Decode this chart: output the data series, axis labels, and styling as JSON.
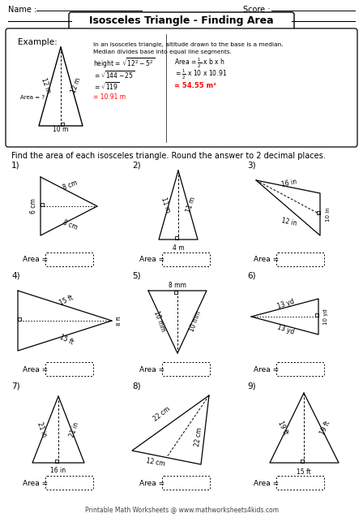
{
  "title": "Isosceles Triangle - Finding Area",
  "name_label": "Name :",
  "score_label": "Score :",
  "instruction": "Find the area of each isosceles triangle. Round the answer to 2 decimal places.",
  "example_text": "Example:",
  "rule1": "In an isosceles triangle, altitude drawn to the base is a median.",
  "rule2": "Median divides base into equal line segments.",
  "footer": "Printable Math Worksheets @ www.mathworksheets4kids.com",
  "bg_color": "#ffffff"
}
